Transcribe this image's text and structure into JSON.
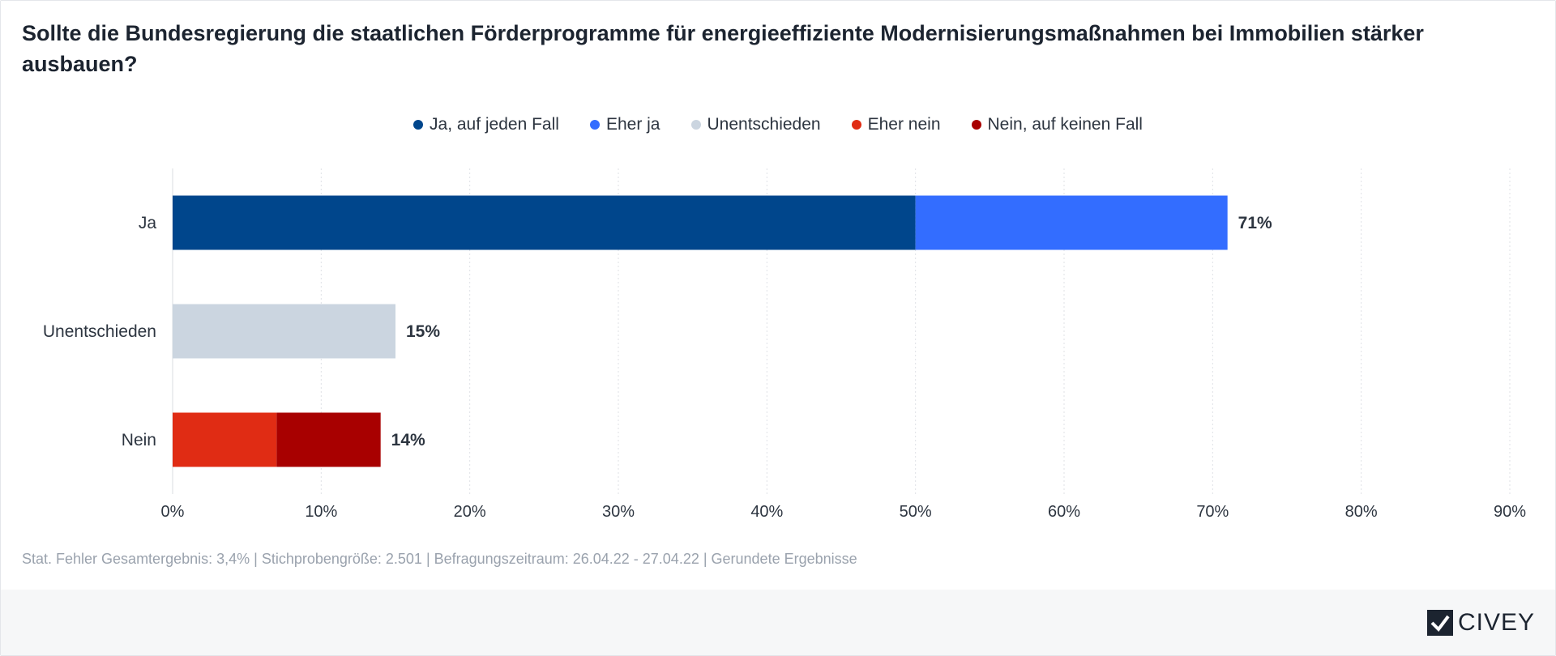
{
  "title": "Sollte die Bundesregierung die staatlichen Förderprogramme für energieeffiziente Modernisierungsmaßnahmen bei Immobilien stärker ausbauen?",
  "legend": [
    {
      "label": "Ja, auf jeden Fall",
      "color": "#00468c"
    },
    {
      "label": "Eher ja",
      "color": "#336dff"
    },
    {
      "label": "Unentschieden",
      "color": "#cbd5e0"
    },
    {
      "label": "Eher nein",
      "color": "#e02c14"
    },
    {
      "label": "Nein, auf keinen Fall",
      "color": "#a80000"
    }
  ],
  "footer_note": "Stat. Fehler Gesamtergebnis: 3,4% | Stichprobengröße: 2.501 | Befragungszeitraum: 26.04.22 - 27.04.22 | Gerundete Ergebnisse",
  "brand": "CIVEY",
  "chart_data": {
    "type": "bar",
    "orientation": "horizontal",
    "stacked": true,
    "categories": [
      "Ja",
      "Unentschieden",
      "Nein"
    ],
    "series": [
      {
        "name": "Ja, auf jeden Fall",
        "color": "#00468c",
        "values": [
          50,
          0,
          0
        ]
      },
      {
        "name": "Eher ja",
        "color": "#336dff",
        "values": [
          21,
          0,
          0
        ]
      },
      {
        "name": "Unentschieden",
        "color": "#cbd5e0",
        "values": [
          0,
          15,
          0
        ]
      },
      {
        "name": "Eher nein",
        "color": "#e02c14",
        "values": [
          0,
          0,
          7
        ]
      },
      {
        "name": "Nein, auf keinen Fall",
        "color": "#a80000",
        "values": [
          0,
          0,
          7
        ]
      }
    ],
    "totals": [
      71,
      15,
      14
    ],
    "total_labels": [
      "71%",
      "15%",
      "14%"
    ],
    "xlim": [
      0,
      90
    ],
    "xticks": [
      0,
      10,
      20,
      30,
      40,
      50,
      60,
      70,
      80,
      90
    ],
    "xtick_labels": [
      "0%",
      "10%",
      "20%",
      "30%",
      "40%",
      "50%",
      "60%",
      "70%",
      "80%",
      "90%"
    ],
    "grid": true,
    "legend_position": "top-center"
  }
}
